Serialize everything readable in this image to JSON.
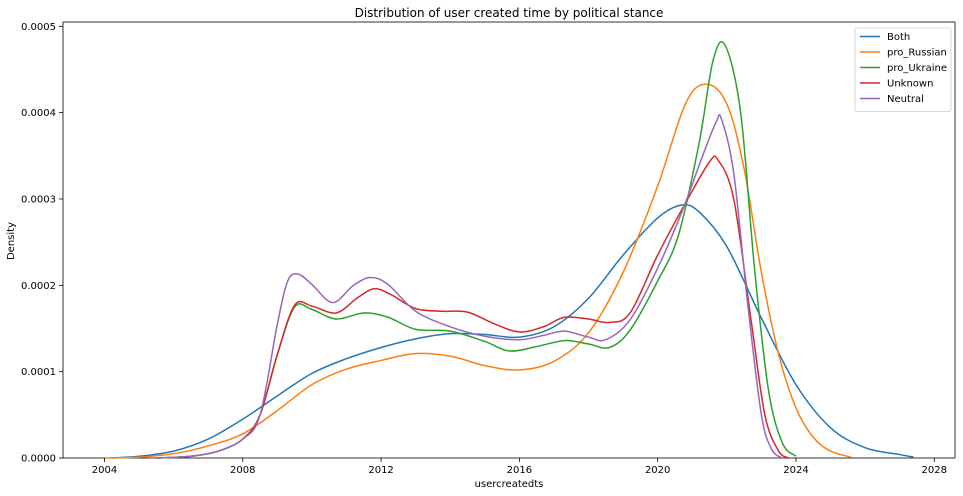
{
  "chart_data": {
    "type": "line",
    "title": "Distribution of user created time by political stance",
    "xlabel": "usercreatedts",
    "ylabel": "Density",
    "xlim": [
      2002.8,
      2028.6
    ],
    "ylim": [
      0,
      0.000505
    ],
    "xticks": [
      2004,
      2008,
      2012,
      2016,
      2020,
      2024,
      2028
    ],
    "xtick_labels": [
      "2004",
      "2008",
      "2012",
      "2016",
      "2020",
      "2024",
      "2028"
    ],
    "yticks": [
      0,
      0.0001,
      0.0002,
      0.0003,
      0.0004,
      0.0005
    ],
    "ytick_labels": [
      "0.0000",
      "0.0001",
      "0.0002",
      "0.0003",
      "0.0004",
      "0.0005"
    ],
    "grid": false,
    "legend_position": "top-right",
    "series": [
      {
        "name": "Both",
        "color": "#1f77b4",
        "points": [
          [
            2004.2,
            0
          ],
          [
            2005,
            2e-06
          ],
          [
            2006,
            8e-06
          ],
          [
            2007,
            2.2e-05
          ],
          [
            2008,
            4.5e-05
          ],
          [
            2009,
            7.2e-05
          ],
          [
            2010,
            9.8e-05
          ],
          [
            2011,
            0.000115
          ],
          [
            2012,
            0.000128
          ],
          [
            2013,
            0.000138
          ],
          [
            2014,
            0.000144
          ],
          [
            2015,
            0.000143
          ],
          [
            2016,
            0.00014
          ],
          [
            2017,
            0.000152
          ],
          [
            2018,
            0.000185
          ],
          [
            2019,
            0.000235
          ],
          [
            2020,
            0.000278
          ],
          [
            2020.7,
            0.000293
          ],
          [
            2021.2,
            0.000285
          ],
          [
            2022,
            0.000245
          ],
          [
            2023,
            0.000162
          ],
          [
            2024,
            8.5e-05
          ],
          [
            2025,
            3.5e-05
          ],
          [
            2026,
            1.2e-05
          ],
          [
            2027,
            4e-06
          ],
          [
            2027.4,
            1e-06
          ]
        ]
      },
      {
        "name": "pro_Russian",
        "color": "#ff7f0e",
        "points": [
          [
            2004,
            0
          ],
          [
            2005,
            1e-06
          ],
          [
            2006,
            5e-06
          ],
          [
            2007,
            1.4e-05
          ],
          [
            2008,
            2.8e-05
          ],
          [
            2009,
            5.5e-05
          ],
          [
            2010,
            8.5e-05
          ],
          [
            2011,
            0.000103
          ],
          [
            2012,
            0.000113
          ],
          [
            2013,
            0.000121
          ],
          [
            2014,
            0.000118
          ],
          [
            2015,
            0.000107
          ],
          [
            2016,
            0.000102
          ],
          [
            2017,
            0.000112
          ],
          [
            2018,
            0.000145
          ],
          [
            2019,
            0.000215
          ],
          [
            2020,
            0.000315
          ],
          [
            2020.8,
            0.00041
          ],
          [
            2021.4,
            0.000433
          ],
          [
            2022,
            0.00041
          ],
          [
            2022.5,
            0.000335
          ],
          [
            2023,
            0.000215
          ],
          [
            2023.5,
            0.00012
          ],
          [
            2024,
            5.8e-05
          ],
          [
            2024.5,
            2.4e-05
          ],
          [
            2025,
            8e-06
          ],
          [
            2025.6,
            1e-06
          ]
        ]
      },
      {
        "name": "pro_Ukraine",
        "color": "#2ca02c",
        "points": [
          [
            2005.5,
            0
          ],
          [
            2006.5,
            2e-06
          ],
          [
            2007.3,
            8e-06
          ],
          [
            2008,
            2.2e-05
          ],
          [
            2008.5,
            5e-05
          ],
          [
            2009,
            0.00012
          ],
          [
            2009.5,
            0.000175
          ],
          [
            2010,
            0.000172
          ],
          [
            2010.7,
            0.000161
          ],
          [
            2011.5,
            0.000168
          ],
          [
            2012.2,
            0.000163
          ],
          [
            2013,
            0.000149
          ],
          [
            2014,
            0.000147
          ],
          [
            2015,
            0.000135
          ],
          [
            2015.7,
            0.000124
          ],
          [
            2016.5,
            0.000129
          ],
          [
            2017.3,
            0.000136
          ],
          [
            2018,
            0.000132
          ],
          [
            2018.6,
            0.000128
          ],
          [
            2019.2,
            0.000148
          ],
          [
            2020,
            0.000205
          ],
          [
            2020.6,
            0.000258
          ],
          [
            2021.2,
            0.000365
          ],
          [
            2021.6,
            0.00046
          ],
          [
            2021.95,
            0.000478
          ],
          [
            2022.4,
            0.0004
          ],
          [
            2022.8,
            0.00022
          ],
          [
            2023.2,
            8e-05
          ],
          [
            2023.6,
            1.8e-05
          ],
          [
            2024,
            2e-06
          ]
        ]
      },
      {
        "name": "Unknown",
        "color": "#d62728",
        "points": [
          [
            2005.5,
            0
          ],
          [
            2006.5,
            2e-06
          ],
          [
            2007.3,
            8e-06
          ],
          [
            2008,
            2.2e-05
          ],
          [
            2008.5,
            5e-05
          ],
          [
            2009,
            0.00012
          ],
          [
            2009.5,
            0.000177
          ],
          [
            2010,
            0.000176
          ],
          [
            2010.7,
            0.000168
          ],
          [
            2011.3,
            0.000185
          ],
          [
            2011.8,
            0.000196
          ],
          [
            2012.3,
            0.000189
          ],
          [
            2013,
            0.000173
          ],
          [
            2013.8,
            0.00017
          ],
          [
            2014.5,
            0.000169
          ],
          [
            2015.3,
            0.000155
          ],
          [
            2016,
            0.000146
          ],
          [
            2016.7,
            0.000152
          ],
          [
            2017.3,
            0.000163
          ],
          [
            2018,
            0.000161
          ],
          [
            2018.6,
            0.000157
          ],
          [
            2019.2,
            0.000168
          ],
          [
            2020,
            0.000235
          ],
          [
            2020.8,
            0.000295
          ],
          [
            2021.5,
            0.000343
          ],
          [
            2021.75,
            0.000345
          ],
          [
            2022.2,
            0.0003
          ],
          [
            2022.7,
            0.00016
          ],
          [
            2023.1,
            5e-05
          ],
          [
            2023.5,
            8e-06
          ],
          [
            2023.8,
            0
          ]
        ]
      },
      {
        "name": "Neutral",
        "color": "#9467bd",
        "points": [
          [
            2005.5,
            0
          ],
          [
            2006.5,
            2e-06
          ],
          [
            2007.3,
            8e-06
          ],
          [
            2008,
            2.2e-05
          ],
          [
            2008.5,
            5e-05
          ],
          [
            2009,
            0.000155
          ],
          [
            2009.3,
            0.000205
          ],
          [
            2009.6,
            0.000213
          ],
          [
            2010,
            0.000201
          ],
          [
            2010.6,
            0.00018
          ],
          [
            2011.2,
            0.0002
          ],
          [
            2011.7,
            0.000209
          ],
          [
            2012.2,
            0.000201
          ],
          [
            2013,
            0.00017
          ],
          [
            2014,
            0.000152
          ],
          [
            2015,
            0.000141
          ],
          [
            2016,
            0.000137
          ],
          [
            2016.7,
            0.000142
          ],
          [
            2017.3,
            0.000147
          ],
          [
            2018,
            0.00014
          ],
          [
            2018.5,
            0.000137
          ],
          [
            2019.2,
            0.00016
          ],
          [
            2020,
            0.00022
          ],
          [
            2020.7,
            0.000285
          ],
          [
            2021.3,
            0.00035
          ],
          [
            2021.7,
            0.00039
          ],
          [
            2021.85,
            0.000392
          ],
          [
            2022.2,
            0.00033
          ],
          [
            2022.6,
            0.00018
          ],
          [
            2023,
            5e-05
          ],
          [
            2023.3,
            1e-05
          ],
          [
            2023.6,
            0
          ]
        ]
      }
    ]
  }
}
